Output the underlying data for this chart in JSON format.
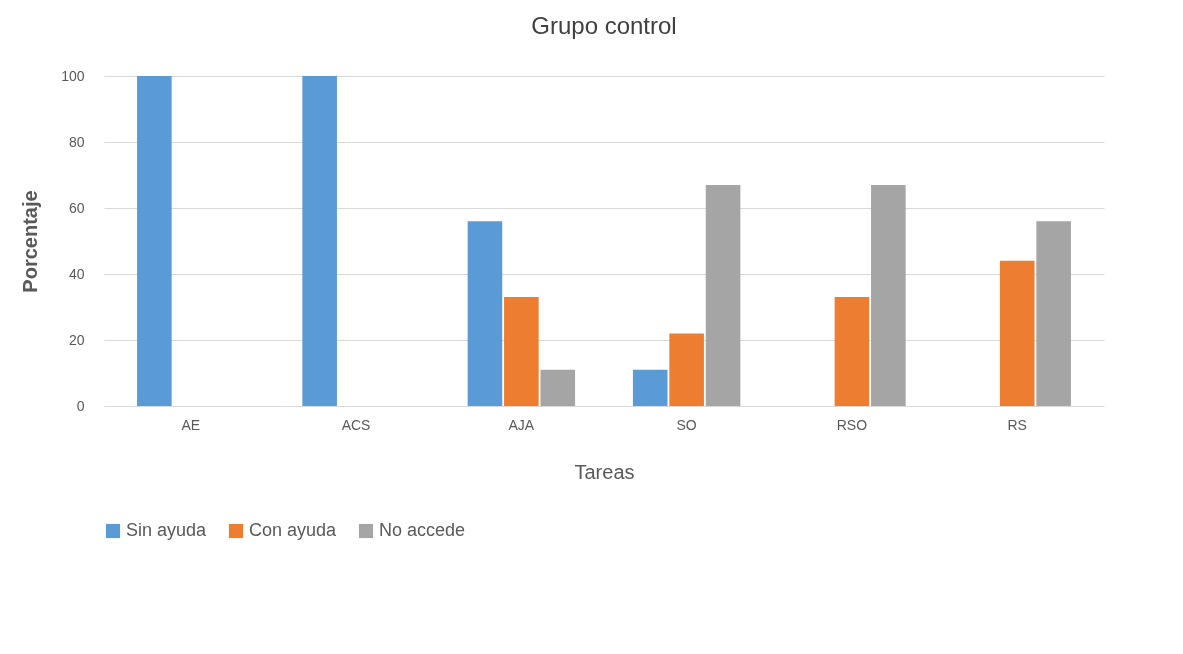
{
  "chart_data": {
    "type": "bar",
    "title": "Grupo control",
    "xlabel": "Tareas",
    "ylabel": "Porcentaje",
    "categories": [
      "AE",
      "ACS",
      "AJA",
      "SO",
      "RSO",
      "RS"
    ],
    "series": [
      {
        "name": "Sin ayuda",
        "color": "#5b9bd5",
        "values": [
          100,
          100,
          56,
          11,
          0,
          0
        ]
      },
      {
        "name": "Con ayuda",
        "color": "#ed7d31",
        "values": [
          0,
          0,
          33,
          22,
          33,
          44
        ]
      },
      {
        "name": "No accede",
        "color": "#a5a5a5",
        "values": [
          0,
          0,
          11,
          67,
          67,
          56
        ]
      }
    ],
    "ylim": [
      0,
      100
    ],
    "yticks": [
      0,
      20,
      40,
      60,
      80,
      100
    ],
    "grid": "y",
    "legend": "bottom"
  }
}
